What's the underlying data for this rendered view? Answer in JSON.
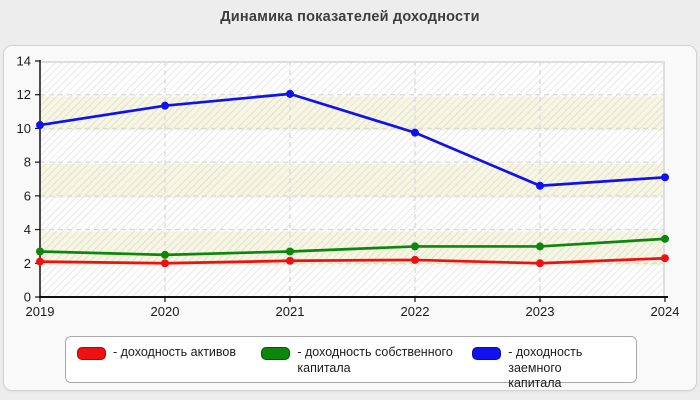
{
  "title": "Динамика показателей доходности",
  "chart_data": {
    "type": "line",
    "x": [
      2019,
      2020,
      2021,
      2022,
      2023,
      2024
    ],
    "ylim": [
      0,
      14
    ],
    "ytick_step": 2,
    "grid": "dashed-horizontal-and-vertical",
    "legend_position": "bottom",
    "series": [
      {
        "name": "доходность активов",
        "color": "#ee1111",
        "values": [
          2.1,
          2.0,
          2.15,
          2.2,
          2.0,
          2.3
        ]
      },
      {
        "name": "доходность собственного капитала",
        "color": "#0c870c",
        "values": [
          2.7,
          2.5,
          2.7,
          3.0,
          3.0,
          3.45
        ]
      },
      {
        "name": "доходность заемного капитала",
        "color": "#1111ee",
        "values": [
          10.2,
          11.35,
          12.05,
          9.75,
          6.6,
          7.1
        ]
      }
    ]
  },
  "legend": {
    "items": [
      {
        "label": "- доходность активов",
        "color": "#ee1111",
        "border": "#a80b0b"
      },
      {
        "label": "- доходность собственного\nкапитала",
        "color": "#0c870c",
        "border": "#075507"
      },
      {
        "label": "- доходность заемного\nкапитала",
        "color": "#1111ee",
        "border": "#0b0ba8"
      }
    ]
  },
  "colors": {
    "page_background": "#ededed",
    "panel_background": "#f9f9f9",
    "plot_band": "#f7f6e2",
    "gridline": "#d9d9d9",
    "axis": "#111111"
  }
}
